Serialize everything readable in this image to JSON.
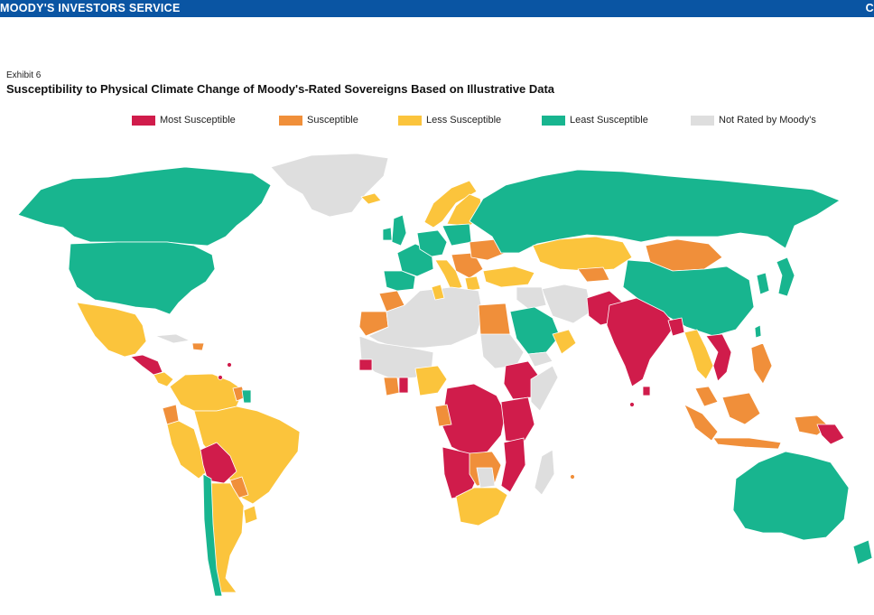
{
  "header": {
    "brand": "MOODY'S INVESTORS SERVICE",
    "right_mark": "C"
  },
  "exhibit_label": "Exhibit 6",
  "title": "Susceptibility to Physical Climate Change of Moody's-Rated Sovereigns Based on Illustrative Data",
  "legend": [
    {
      "label": "Most Susceptible",
      "color": "#d01c4b"
    },
    {
      "label": "Susceptible",
      "color": "#f08f3a"
    },
    {
      "label": "Less Susceptible",
      "color": "#fbc43c"
    },
    {
      "label": "Least Susceptible",
      "color": "#18b58f"
    },
    {
      "label": "Not Rated by Moody's",
      "color": "#dedede"
    }
  ],
  "colors": {
    "header_bg": "#0a55a3",
    "ocean": "#ffffff",
    "border": "#ffffff"
  }
}
